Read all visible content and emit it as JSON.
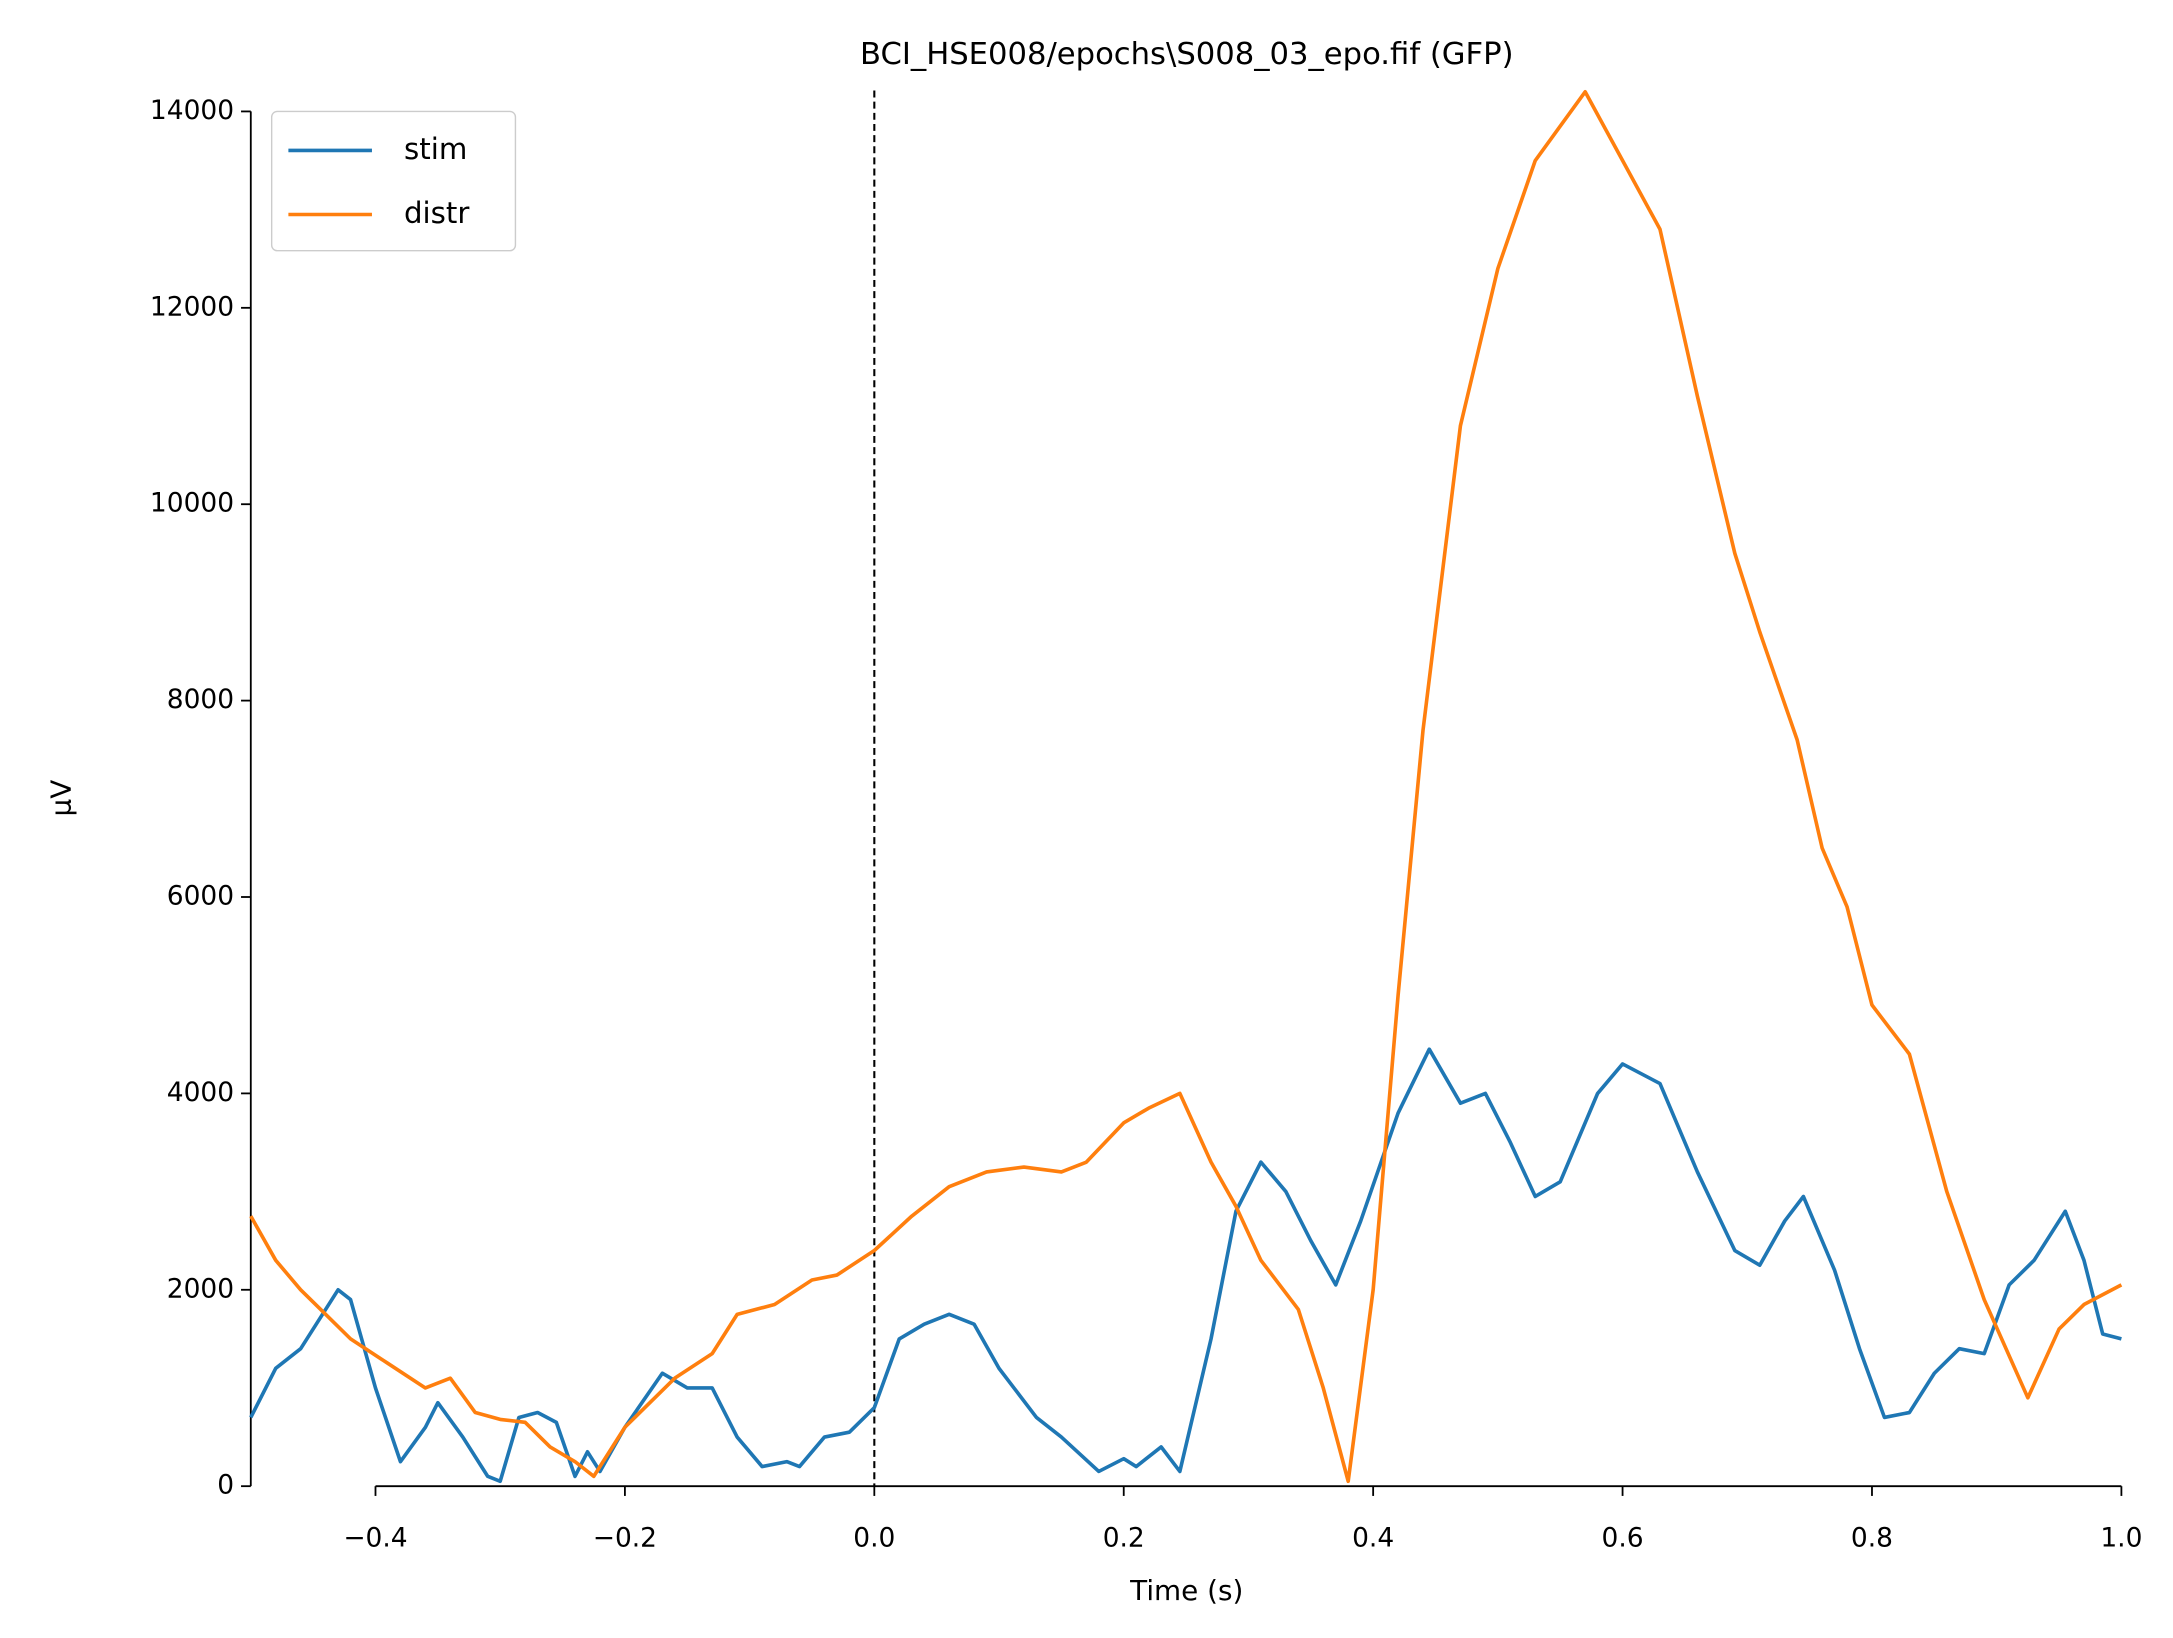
{
  "chart_data": {
    "type": "line",
    "title": "BCI_HSE008/epochs\\S008_03_epo.fif (GFP)",
    "x_label": "Time (s)",
    "y_label": "µV",
    "xlim": [
      -0.5,
      1.0
    ],
    "ylim": [
      0,
      14000
    ],
    "xticks": [
      {
        "value": -0.4,
        "label": "−0.4"
      },
      {
        "value": -0.2,
        "label": "−0.2"
      },
      {
        "value": 0,
        "label": "0.0"
      },
      0.2,
      0.4,
      0.6,
      0.8,
      {
        "value": 1.0,
        "label": "1.0"
      }
    ],
    "yticks": [
      0,
      2000,
      4000,
      6000,
      8000,
      10000,
      12000,
      14000
    ],
    "vlines": [
      0
    ],
    "legend": "upper left",
    "series": [
      {
        "name": "stim",
        "color": "#1f77b4",
        "x": [
          -0.5,
          -0.48,
          -0.46,
          -0.44,
          -0.43,
          -0.42,
          -0.4,
          -0.38,
          -0.36,
          -0.35,
          -0.33,
          -0.31,
          -0.3,
          -0.285,
          -0.27,
          -0.255,
          -0.24,
          -0.23,
          -0.22,
          -0.2,
          -0.17,
          -0.15,
          -0.13,
          -0.11,
          -0.09,
          -0.07,
          -0.06,
          -0.04,
          -0.02,
          0,
          0.02,
          0.04,
          0.06,
          0.08,
          0.1,
          0.13,
          0.15,
          0.18,
          0.2,
          0.21,
          0.23,
          0.245,
          0.27,
          0.29,
          0.31,
          0.33,
          0.35,
          0.37,
          0.39,
          0.42,
          0.445,
          0.47,
          0.49,
          0.51,
          0.53,
          0.55,
          0.58,
          0.6,
          0.63,
          0.66,
          0.69,
          0.71,
          0.73,
          0.745,
          0.77,
          0.79,
          0.81,
          0.83,
          0.85,
          0.87,
          0.89,
          0.91,
          0.93,
          0.955,
          0.97,
          0.985,
          1.0
        ],
        "values": [
          700,
          1200,
          1400,
          1800,
          2000,
          1900,
          1000,
          250,
          600,
          850,
          500,
          100,
          50,
          700,
          750,
          650,
          100,
          350,
          150,
          600,
          1150,
          1000,
          1000,
          500,
          200,
          250,
          200,
          500,
          550,
          800,
          1500,
          1650,
          1750,
          1650,
          1200,
          700,
          500,
          150,
          280,
          200,
          400,
          150,
          1500,
          2800,
          3300,
          3000,
          2500,
          2050,
          2700,
          3800,
          4450,
          3900,
          4000,
          3500,
          2950,
          3100,
          4000,
          4300,
          4100,
          3200,
          2400,
          2250,
          2700,
          2950,
          2200,
          1400,
          700,
          750,
          1150,
          1400,
          1350,
          2050,
          2300,
          2800,
          2300,
          1550,
          1500
        ]
      },
      {
        "name": "distr",
        "color": "#ff7f0e",
        "x": [
          -0.5,
          -0.48,
          -0.46,
          -0.44,
          -0.42,
          -0.39,
          -0.36,
          -0.34,
          -0.32,
          -0.3,
          -0.28,
          -0.26,
          -0.24,
          -0.225,
          -0.2,
          -0.18,
          -0.16,
          -0.13,
          -0.11,
          -0.08,
          -0.05,
          -0.03,
          0,
          0.03,
          0.06,
          0.09,
          0.12,
          0.15,
          0.17,
          0.2,
          0.22,
          0.245,
          0.27,
          0.29,
          0.31,
          0.34,
          0.36,
          0.38,
          0.4,
          0.42,
          0.44,
          0.47,
          0.5,
          0.53,
          0.57,
          0.6,
          0.63,
          0.66,
          0.69,
          0.71,
          0.74,
          0.76,
          0.78,
          0.8,
          0.83,
          0.86,
          0.89,
          0.925,
          0.95,
          0.97,
          1.0
        ],
        "values": [
          2750,
          2300,
          2000,
          1750,
          1500,
          1250,
          1000,
          1100,
          750,
          680,
          650,
          400,
          250,
          100,
          600,
          850,
          1100,
          1350,
          1750,
          1850,
          2100,
          2150,
          2400,
          2750,
          3050,
          3200,
          3250,
          3200,
          3300,
          3700,
          3850,
          4000,
          3300,
          2850,
          2300,
          1800,
          1000,
          50,
          2000,
          5000,
          7700,
          10800,
          12400,
          13500,
          14200,
          13500,
          12800,
          11100,
          9500,
          8700,
          7600,
          6500,
          5900,
          4900,
          4400,
          3000,
          1900,
          900,
          1600,
          1850,
          2050
        ]
      }
    ]
  }
}
